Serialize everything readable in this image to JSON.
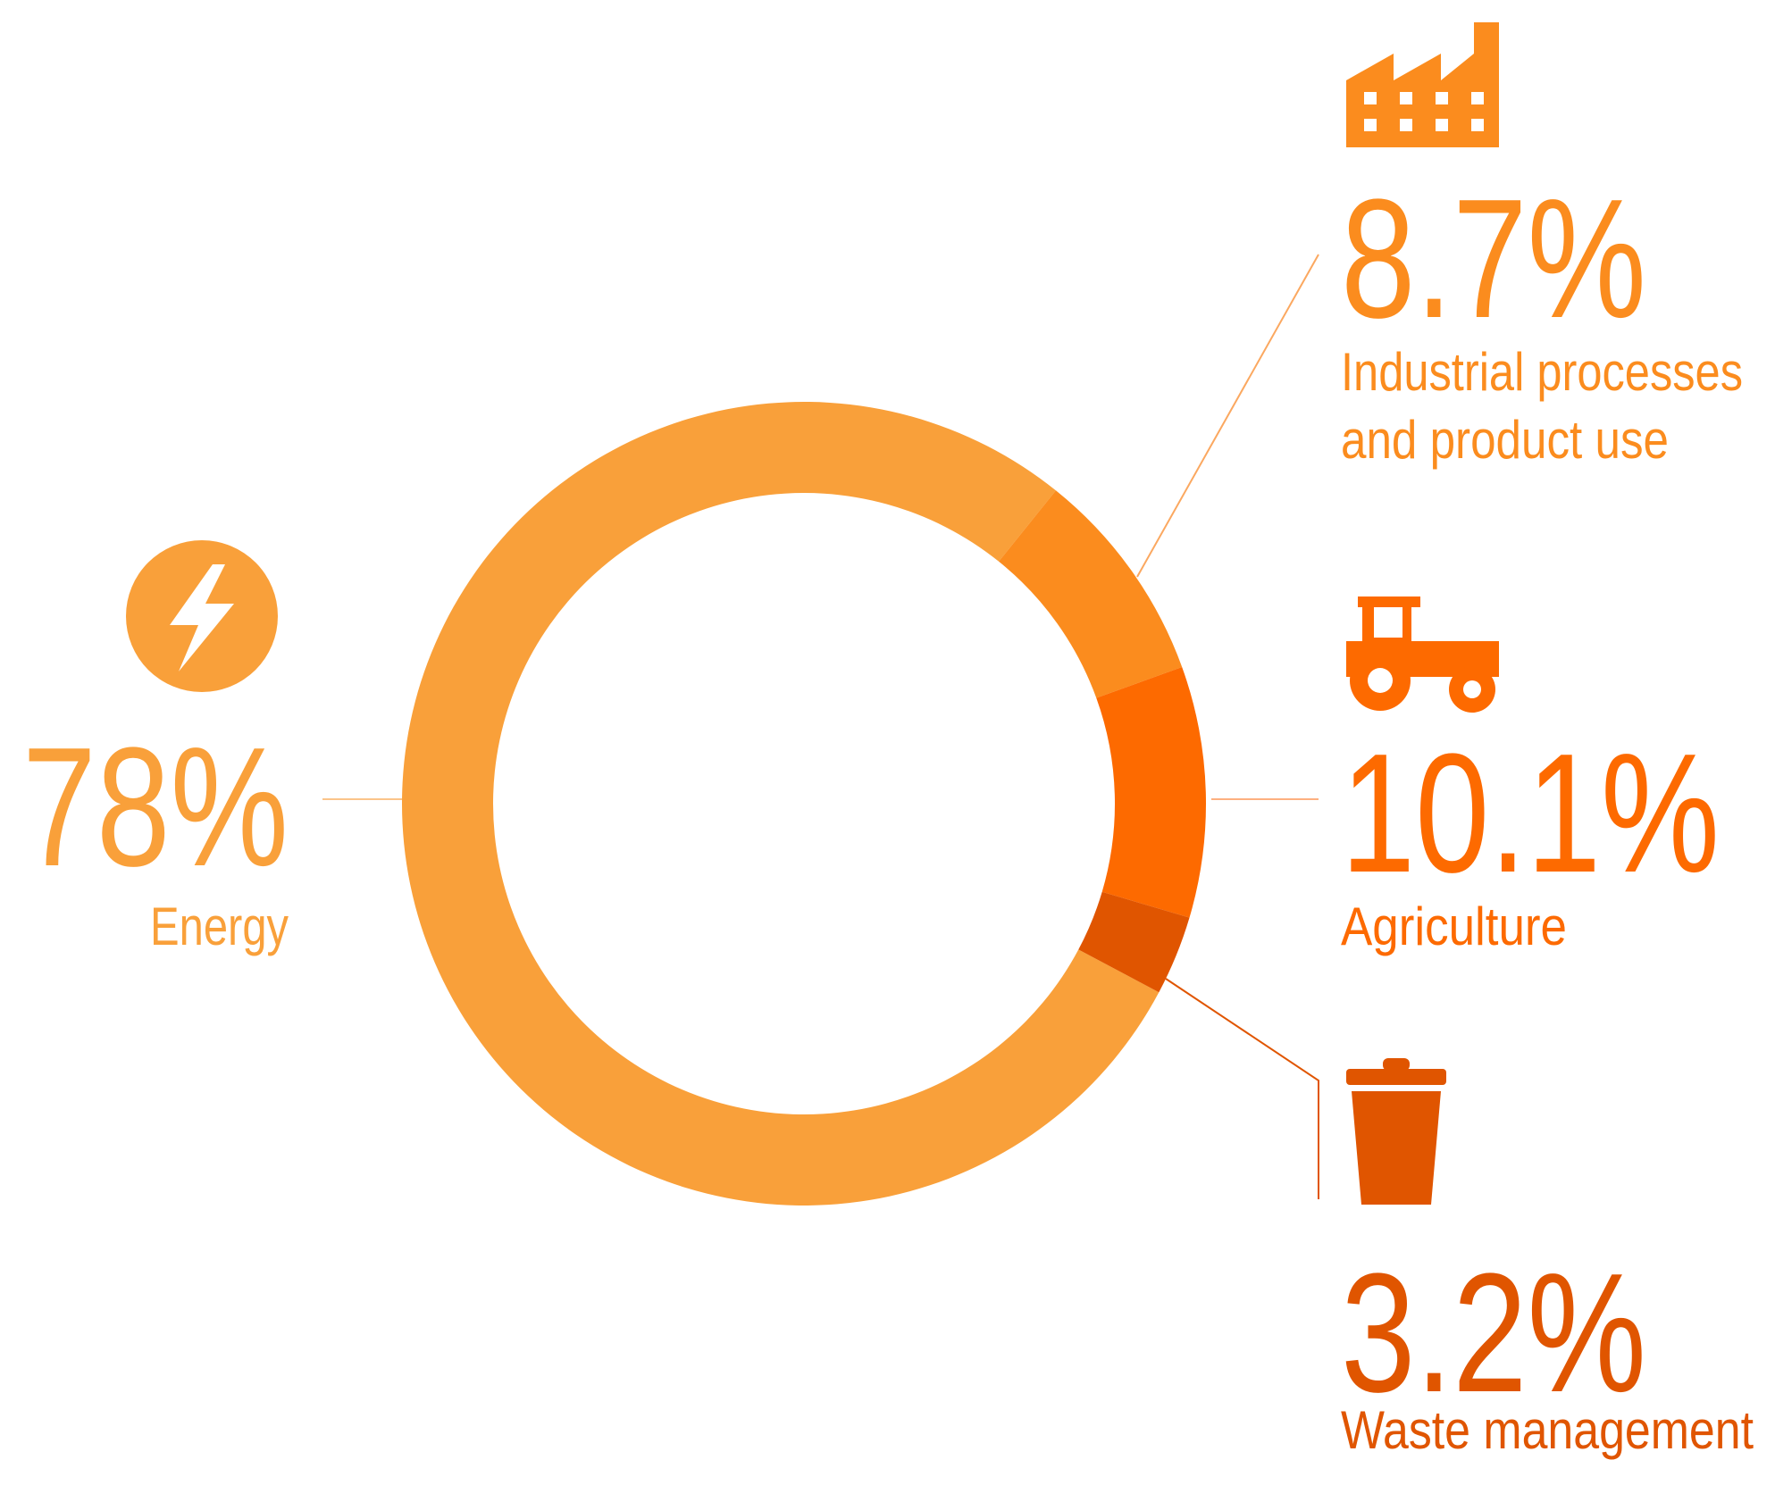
{
  "chart_data": {
    "type": "donut",
    "categories": [
      "Energy",
      "Industrial processes and product use",
      "Agriculture",
      "Waste management"
    ],
    "values": [
      78,
      8.7,
      10.1,
      3.2
    ],
    "value_labels": [
      "78%",
      "8.7%",
      "10.1%",
      "3.2%"
    ],
    "colors": [
      "#f9a03a",
      "#fb8c1e",
      "#fd6a00",
      "#e05500"
    ]
  }
}
